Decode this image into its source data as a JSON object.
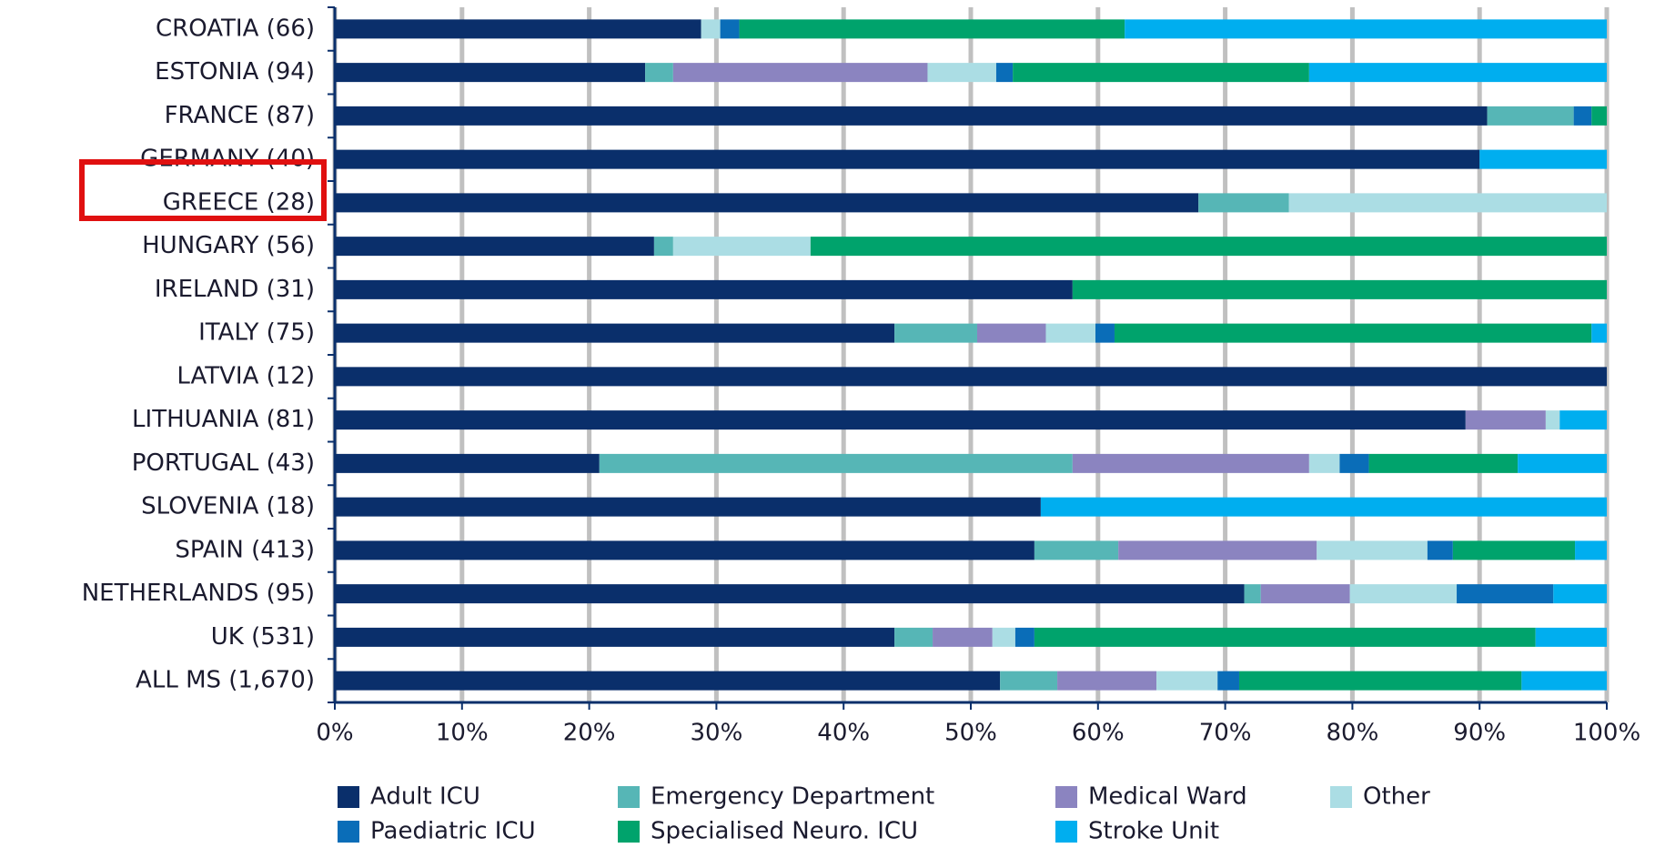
{
  "chart_data": {
    "type": "stacked-bar-horizontal",
    "categories": [
      "CROATIA (66)",
      "ESTONIA (94)",
      "FRANCE (87)",
      "GERMANY (40)",
      "GREECE (28)",
      "HUNGARY (56)",
      "IRELAND (31)",
      "ITALY (75)",
      "LATVIA (12)",
      "LITHUANIA (81)",
      "PORTUGAL (43)",
      "SLOVENIA (18)",
      "SPAIN (413)",
      "NETHERLANDS (95)",
      "UK (531)",
      "ALL MS (1,670)"
    ],
    "series": [
      {
        "name": "Adult ICU",
        "color": "#0a2f6b",
        "values": [
          28.8,
          24.4,
          90.6,
          90.0,
          67.9,
          25.1,
          58.0,
          44.0,
          100,
          88.9,
          20.8,
          55.5,
          55.0,
          71.5,
          44.0,
          52.3
        ]
      },
      {
        "name": "Emergency Department",
        "color": "#56b6b6",
        "values": [
          0,
          2.2,
          6.8,
          0,
          7.1,
          1.5,
          0,
          6.5,
          0,
          0,
          37.2,
          0,
          6.6,
          1.3,
          3.0,
          4.5
        ]
      },
      {
        "name": "Medical Ward",
        "color": "#8b84c0",
        "values": [
          0,
          20.0,
          0,
          0,
          0,
          0,
          0,
          5.4,
          0,
          6.3,
          18.6,
          0,
          15.6,
          7.0,
          4.7,
          7.8
        ]
      },
      {
        "name": "Other",
        "color": "#abdde4",
        "values": [
          1.5,
          5.4,
          0,
          0,
          25.0,
          10.8,
          0,
          3.9,
          0,
          1.1,
          2.4,
          0,
          8.7,
          8.4,
          1.8,
          4.8
        ]
      },
      {
        "name": "Paediatric ICU",
        "color": "#0a6db8",
        "values": [
          1.5,
          1.3,
          1.4,
          0,
          0,
          0,
          0,
          1.5,
          0,
          0,
          2.3,
          0,
          2.0,
          7.6,
          1.5,
          1.7
        ]
      },
      {
        "name": "Specialised Neuro. ICU",
        "color": "#00a36c",
        "values": [
          30.3,
          23.3,
          1.2,
          0,
          0,
          62.6,
          42.0,
          37.5,
          0,
          0,
          11.7,
          0,
          9.6,
          0,
          39.4,
          22.2
        ]
      },
      {
        "name": "Stroke Unit",
        "color": "#00aeef",
        "values": [
          37.9,
          23.4,
          0,
          10.0,
          0,
          0,
          0,
          1.2,
          0,
          3.7,
          7.0,
          44.5,
          2.5,
          4.2,
          5.6,
          6.7
        ]
      }
    ],
    "xlim": [
      0,
      100
    ],
    "xticks": [
      {
        "value": 0,
        "label": "0%"
      },
      {
        "value": 10,
        "label": "10%"
      },
      {
        "value": 20,
        "label": "20%"
      },
      {
        "value": 30,
        "label": "30%"
      },
      {
        "value": 40,
        "label": "40%"
      },
      {
        "value": 50,
        "label": "50%"
      },
      {
        "value": 60,
        "label": "60%"
      },
      {
        "value": 70,
        "label": "70%"
      },
      {
        "value": 80,
        "label": "80%"
      },
      {
        "value": 90,
        "label": "90%"
      },
      {
        "value": 100,
        "label": "100%"
      }
    ],
    "grid": true,
    "legend": "bottom"
  }
}
